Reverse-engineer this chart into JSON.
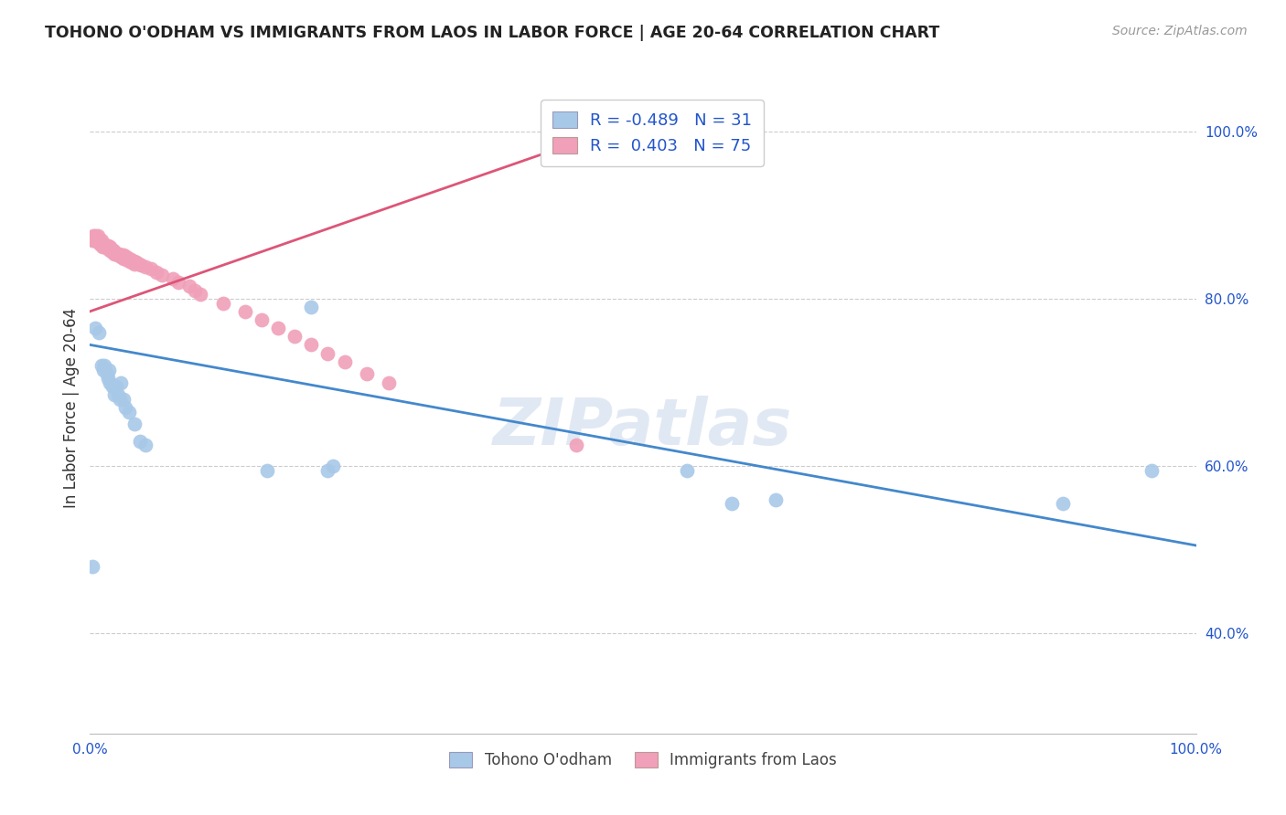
{
  "title": "TOHONO O'ODHAM VS IMMIGRANTS FROM LAOS IN LABOR FORCE | AGE 20-64 CORRELATION CHART",
  "source": "Source: ZipAtlas.com",
  "ylabel": "In Labor Force | Age 20-64",
  "watermark": "ZIPatlas",
  "legend_blue_R": "R = -0.489",
  "legend_blue_N": "N = 31",
  "legend_pink_R": "R =  0.403",
  "legend_pink_N": "N = 75",
  "blue_color": "#a8c8e8",
  "pink_color": "#f0a0b8",
  "blue_line_color": "#4488cc",
  "pink_line_color": "#dd5577",
  "legend_text_color": "#2255cc",
  "grid_color": "#cccccc",
  "tohono_x": [
    0.002,
    0.005,
    0.008,
    0.01,
    0.012,
    0.013,
    0.015,
    0.016,
    0.017,
    0.018,
    0.02,
    0.022,
    0.024,
    0.025,
    0.027,
    0.028,
    0.03,
    0.032,
    0.035,
    0.04,
    0.045,
    0.05,
    0.16,
    0.2,
    0.215,
    0.22,
    0.54,
    0.58,
    0.62,
    0.88,
    0.96
  ],
  "tohono_y": [
    0.48,
    0.765,
    0.76,
    0.72,
    0.715,
    0.72,
    0.71,
    0.705,
    0.715,
    0.7,
    0.695,
    0.685,
    0.695,
    0.685,
    0.68,
    0.7,
    0.68,
    0.67,
    0.665,
    0.65,
    0.63,
    0.625,
    0.595,
    0.79,
    0.595,
    0.6,
    0.595,
    0.555,
    0.56,
    0.555,
    0.595
  ],
  "laos_x": [
    0.002,
    0.003,
    0.004,
    0.005,
    0.005,
    0.006,
    0.007,
    0.007,
    0.008,
    0.008,
    0.009,
    0.009,
    0.01,
    0.01,
    0.011,
    0.011,
    0.012,
    0.012,
    0.013,
    0.013,
    0.014,
    0.015,
    0.016,
    0.016,
    0.017,
    0.018,
    0.018,
    0.019,
    0.02,
    0.02,
    0.021,
    0.022,
    0.022,
    0.023,
    0.024,
    0.025,
    0.026,
    0.027,
    0.028,
    0.028,
    0.03,
    0.03,
    0.031,
    0.032,
    0.033,
    0.034,
    0.035,
    0.036,
    0.037,
    0.038,
    0.04,
    0.04,
    0.042,
    0.044,
    0.046,
    0.05,
    0.055,
    0.06,
    0.065,
    0.075,
    0.08,
    0.09,
    0.095,
    0.1,
    0.12,
    0.14,
    0.155,
    0.17,
    0.185,
    0.2,
    0.215,
    0.23,
    0.25,
    0.27,
    0.44
  ],
  "laos_y": [
    0.87,
    0.875,
    0.87,
    0.875,
    0.87,
    0.87,
    0.87,
    0.875,
    0.87,
    0.868,
    0.868,
    0.866,
    0.87,
    0.865,
    0.865,
    0.862,
    0.866,
    0.863,
    0.865,
    0.862,
    0.865,
    0.863,
    0.863,
    0.86,
    0.86,
    0.862,
    0.858,
    0.86,
    0.858,
    0.856,
    0.858,
    0.856,
    0.854,
    0.855,
    0.854,
    0.852,
    0.854,
    0.852,
    0.853,
    0.85,
    0.852,
    0.848,
    0.85,
    0.848,
    0.85,
    0.846,
    0.848,
    0.845,
    0.847,
    0.844,
    0.845,
    0.842,
    0.844,
    0.842,
    0.84,
    0.838,
    0.836,
    0.832,
    0.828,
    0.824,
    0.82,
    0.815,
    0.81,
    0.805,
    0.795,
    0.785,
    0.775,
    0.765,
    0.755,
    0.745,
    0.735,
    0.725,
    0.71,
    0.7,
    0.625
  ],
  "blue_trendline_x": [
    0.0,
    1.0
  ],
  "blue_trendline_y": [
    0.745,
    0.505
  ],
  "pink_trendline_x": [
    0.0,
    0.5
  ],
  "pink_trendline_y": [
    0.785,
    1.015
  ],
  "xlim": [
    0.0,
    1.0
  ],
  "ylim": [
    0.28,
    1.06
  ],
  "ytick_vals": [
    0.4,
    0.6,
    0.8,
    1.0
  ],
  "ytick_labels": [
    "40.0%",
    "60.0%",
    "80.0%",
    "100.0%"
  ]
}
